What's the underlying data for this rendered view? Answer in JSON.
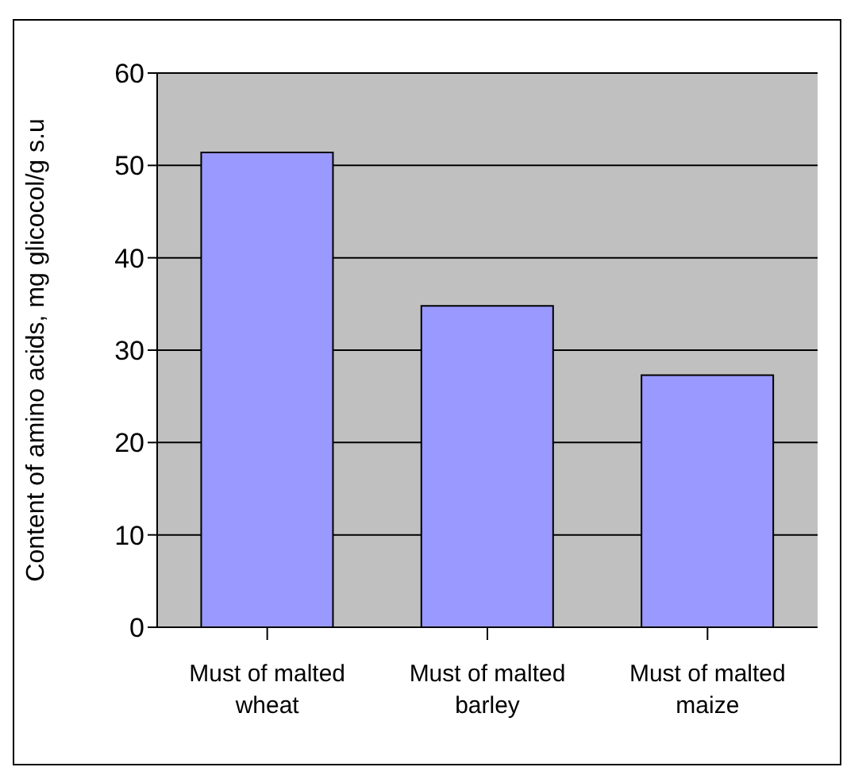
{
  "chart_data": {
    "type": "bar",
    "ylabel": "Content of amino acids, mg glicocol/g s.u",
    "categories": [
      "Must of malted wheat",
      "Must of malted barley",
      "Must of malted maize"
    ],
    "values": [
      51.4,
      34.8,
      27.3
    ],
    "color": "#9999ff",
    "ylim": [
      0,
      60
    ],
    "yticks": [
      0,
      10,
      20,
      30,
      40,
      50,
      60
    ],
    "grid": "y"
  }
}
